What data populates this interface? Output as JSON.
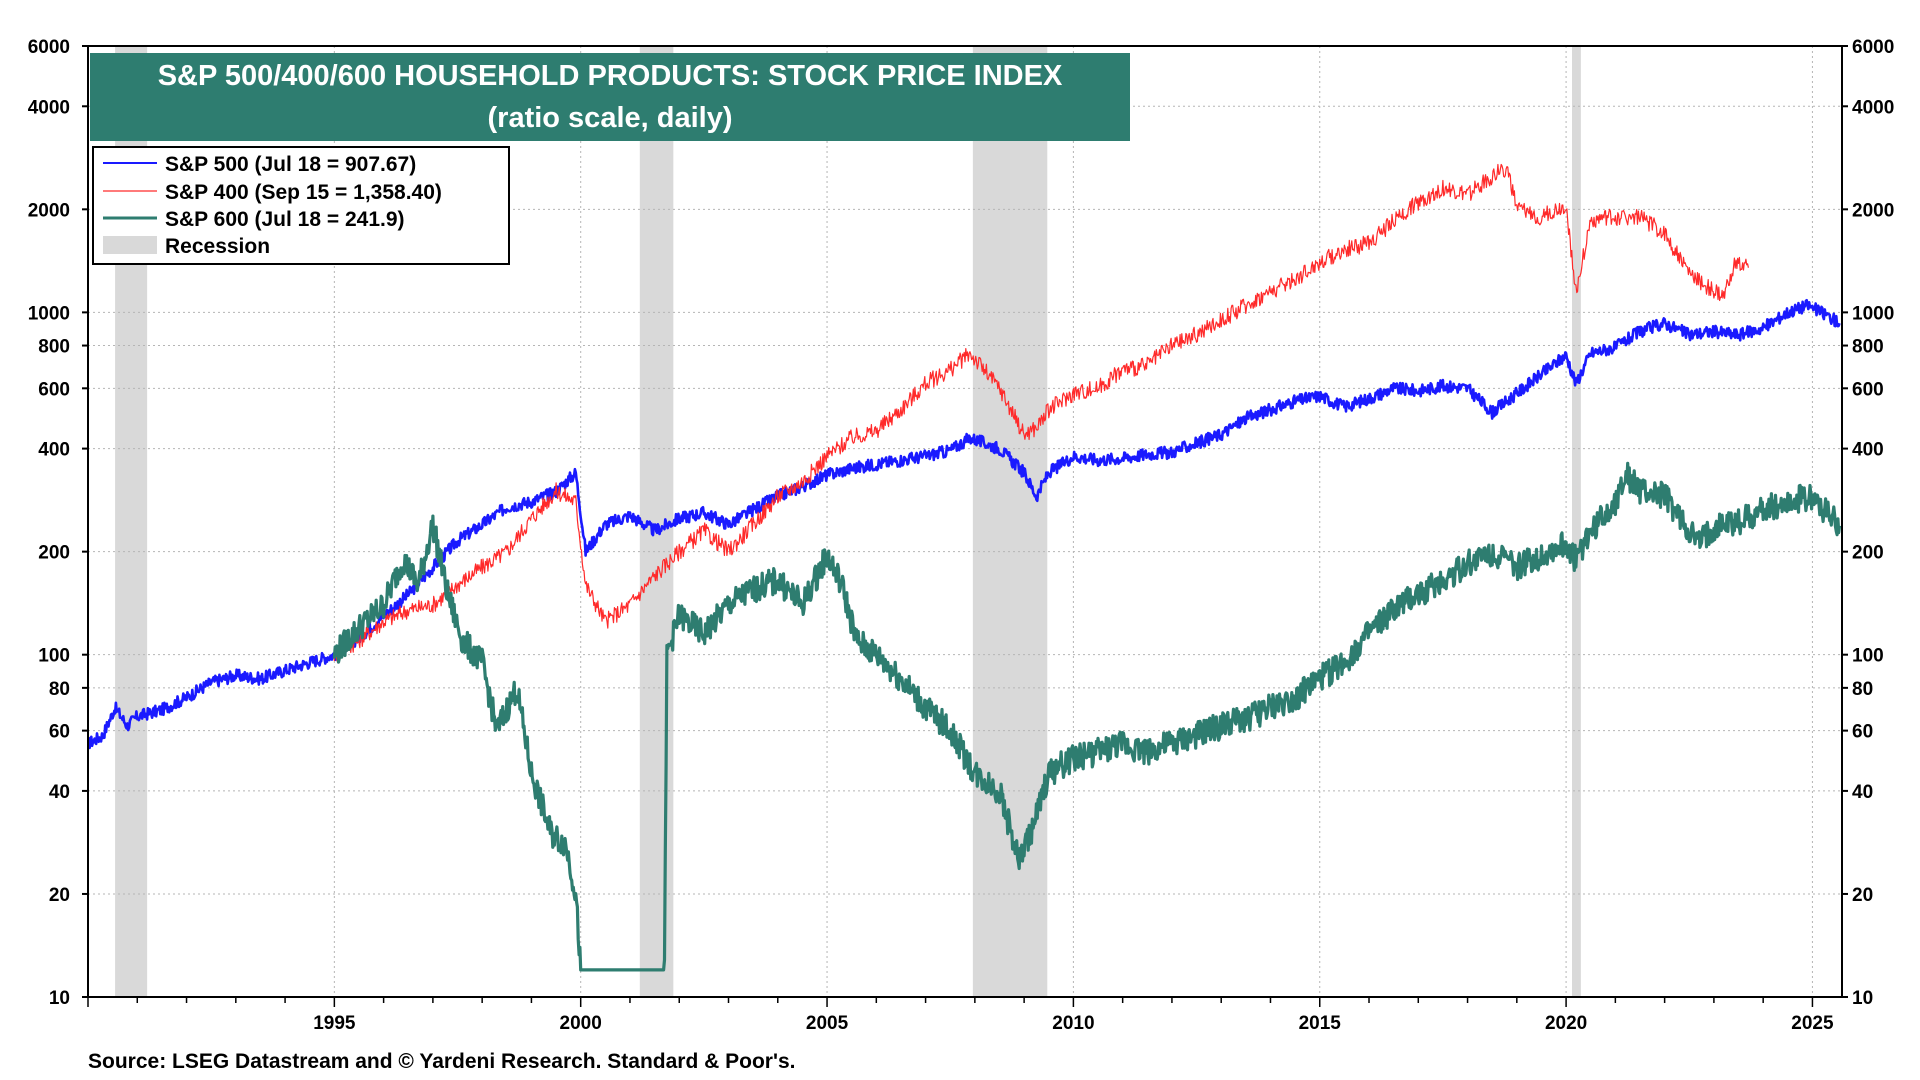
{
  "source": "Source: LSEG Datastream and © Yardeni Research. Standard & Poor's.",
  "chart_data": {
    "type": "line",
    "title": "S&P 500/400/600 HOUSEHOLD PRODUCTS: STOCK PRICE INDEX",
    "subtitle": "(ratio scale, daily)",
    "yscale": "log",
    "ylim": [
      10,
      6000
    ],
    "xlim": [
      1990.0,
      2025.6
    ],
    "y_ticks": [
      10,
      20,
      40,
      60,
      80,
      100,
      200,
      400,
      600,
      800,
      1000,
      2000,
      4000,
      6000
    ],
    "x_ticks": [
      1995,
      2000,
      2005,
      2010,
      2015,
      2020,
      2025
    ],
    "grid": true,
    "legend_position": "top-left",
    "colors": {
      "sp500": "#1a1aff",
      "sp400": "#ff2a2a",
      "sp600": "#2e7d70",
      "recession": "#d9d9d9",
      "title_bg": "#2e7d70"
    },
    "legend": [
      {
        "label": "S&P 500 (Jul 18 = 907.67)",
        "color": "#1a1aff"
      },
      {
        "label": "S&P 400 (Sep 15 = 1,358.40)",
        "color": "#ff2a2a"
      },
      {
        "label": "S&P 600 (Jul 18 = 241.9)",
        "color": "#2e7d70"
      },
      {
        "label": "Recession",
        "color": "#d9d9d9"
      }
    ],
    "recessions": [
      [
        1990.55,
        1991.2
      ],
      [
        2001.2,
        2001.88
      ],
      [
        2007.96,
        2009.47
      ],
      [
        2020.12,
        2020.3
      ]
    ],
    "series": [
      {
        "name": "S&P 500 (Jul 18 = 907.67)",
        "color": "#1a1aff",
        "points": [
          [
            1990.0,
            55
          ],
          [
            1990.3,
            58
          ],
          [
            1990.55,
            70
          ],
          [
            1990.8,
            62
          ],
          [
            1991.0,
            66
          ],
          [
            1991.5,
            69
          ],
          [
            1992.0,
            75
          ],
          [
            1992.5,
            83
          ],
          [
            1993.0,
            87
          ],
          [
            1993.5,
            85
          ],
          [
            1994.0,
            90
          ],
          [
            1994.5,
            95
          ],
          [
            1995.0,
            100
          ],
          [
            1995.5,
            112
          ],
          [
            1996.0,
            130
          ],
          [
            1996.5,
            150
          ],
          [
            1997.0,
            180
          ],
          [
            1997.5,
            215
          ],
          [
            1998.0,
            240
          ],
          [
            1998.5,
            270
          ],
          [
            1999.0,
            280
          ],
          [
            1999.5,
            300
          ],
          [
            1999.9,
            340
          ],
          [
            2000.1,
            200
          ],
          [
            2000.5,
            240
          ],
          [
            2001.0,
            255
          ],
          [
            2001.5,
            230
          ],
          [
            2002.0,
            250
          ],
          [
            2002.5,
            260
          ],
          [
            2003.0,
            240
          ],
          [
            2003.5,
            265
          ],
          [
            2004.0,
            290
          ],
          [
            2004.5,
            310
          ],
          [
            2005.0,
            335
          ],
          [
            2005.5,
            350
          ],
          [
            2006.0,
            360
          ],
          [
            2006.5,
            370
          ],
          [
            2007.0,
            380
          ],
          [
            2007.5,
            395
          ],
          [
            2007.9,
            430
          ],
          [
            2008.5,
            400
          ],
          [
            2009.0,
            340
          ],
          [
            2009.25,
            290
          ],
          [
            2009.5,
            340
          ],
          [
            2010.0,
            380
          ],
          [
            2010.5,
            370
          ],
          [
            2011.0,
            375
          ],
          [
            2011.5,
            385
          ],
          [
            2012.0,
            390
          ],
          [
            2012.5,
            415
          ],
          [
            2013.0,
            440
          ],
          [
            2013.5,
            490
          ],
          [
            2014.0,
            520
          ],
          [
            2014.5,
            550
          ],
          [
            2015.0,
            570
          ],
          [
            2015.5,
            530
          ],
          [
            2016.0,
            560
          ],
          [
            2016.5,
            600
          ],
          [
            2017.0,
            590
          ],
          [
            2017.5,
            610
          ],
          [
            2018.0,
            600
          ],
          [
            2018.5,
            510
          ],
          [
            2019.0,
            580
          ],
          [
            2019.5,
            660
          ],
          [
            2020.0,
            750
          ],
          [
            2020.2,
            620
          ],
          [
            2020.5,
            760
          ],
          [
            2021.0,
            790
          ],
          [
            2021.5,
            880
          ],
          [
            2022.0,
            930
          ],
          [
            2022.5,
            860
          ],
          [
            2023.0,
            880
          ],
          [
            2023.5,
            860
          ],
          [
            2024.0,
            900
          ],
          [
            2024.5,
            1000
          ],
          [
            2024.9,
            1050
          ],
          [
            2025.3,
            980
          ],
          [
            2025.55,
            930
          ]
        ]
      },
      {
        "name": "S&P 400 (Sep 15 = 1,358.40)",
        "color": "#ff2a2a",
        "points": [
          [
            1995.0,
            100
          ],
          [
            1995.5,
            110
          ],
          [
            1996.0,
            125
          ],
          [
            1996.5,
            135
          ],
          [
            1997.0,
            140
          ],
          [
            1997.5,
            160
          ],
          [
            1998.0,
            180
          ],
          [
            1998.5,
            200
          ],
          [
            1999.0,
            250
          ],
          [
            1999.5,
            300
          ],
          [
            1999.9,
            280
          ],
          [
            2000.1,
            160
          ],
          [
            2000.5,
            125
          ],
          [
            2001.0,
            140
          ],
          [
            2001.5,
            170
          ],
          [
            2002.0,
            200
          ],
          [
            2002.5,
            230
          ],
          [
            2003.0,
            200
          ],
          [
            2003.5,
            240
          ],
          [
            2004.0,
            290
          ],
          [
            2004.5,
            320
          ],
          [
            2005.0,
            380
          ],
          [
            2005.5,
            430
          ],
          [
            2006.0,
            450
          ],
          [
            2006.5,
            520
          ],
          [
            2007.0,
            620
          ],
          [
            2007.5,
            680
          ],
          [
            2007.9,
            760
          ],
          [
            2008.5,
            600
          ],
          [
            2009.0,
            440
          ],
          [
            2009.25,
            460
          ],
          [
            2009.5,
            520
          ],
          [
            2010.0,
            580
          ],
          [
            2010.5,
            600
          ],
          [
            2011.0,
            680
          ],
          [
            2011.5,
            700
          ],
          [
            2012.0,
            800
          ],
          [
            2012.5,
            860
          ],
          [
            2013.0,
            950
          ],
          [
            2013.5,
            1050
          ],
          [
            2014.0,
            1150
          ],
          [
            2014.5,
            1250
          ],
          [
            2015.0,
            1400
          ],
          [
            2015.5,
            1520
          ],
          [
            2016.0,
            1600
          ],
          [
            2016.5,
            1850
          ],
          [
            2017.0,
            2100
          ],
          [
            2017.5,
            2300
          ],
          [
            2018.0,
            2200
          ],
          [
            2018.5,
            2500
          ],
          [
            2018.8,
            2650
          ],
          [
            2019.0,
            2000
          ],
          [
            2019.5,
            1900
          ],
          [
            2020.0,
            2050
          ],
          [
            2020.2,
            1150
          ],
          [
            2020.5,
            1850
          ],
          [
            2021.0,
            1900
          ],
          [
            2021.5,
            1900
          ],
          [
            2022.0,
            1700
          ],
          [
            2022.5,
            1300
          ],
          [
            2023.0,
            1150
          ],
          [
            2023.2,
            1100
          ],
          [
            2023.4,
            1380
          ],
          [
            2023.7,
            1350
          ]
        ]
      },
      {
        "name": "S&P 600 (Jul 18 = 241.9)",
        "color": "#2e7d70",
        "points": [
          [
            1995.0,
            100
          ],
          [
            1995.5,
            120
          ],
          [
            1996.0,
            140
          ],
          [
            1996.4,
            190
          ],
          [
            1996.7,
            160
          ],
          [
            1997.0,
            240
          ],
          [
            1997.3,
            150
          ],
          [
            1997.6,
            110
          ],
          [
            1998.0,
            95
          ],
          [
            1998.3,
            60
          ],
          [
            1998.7,
            80
          ],
          [
            1999.0,
            45
          ],
          [
            1999.4,
            30
          ],
          [
            1999.7,
            28
          ],
          [
            1999.9,
            20
          ],
          [
            2000.0,
            12
          ],
          [
            2001.7,
            12
          ],
          [
            2001.75,
            100
          ],
          [
            2002.0,
            130
          ],
          [
            2002.5,
            115
          ],
          [
            2003.0,
            140
          ],
          [
            2003.5,
            155
          ],
          [
            2004.0,
            165
          ],
          [
            2004.5,
            140
          ],
          [
            2005.0,
            195
          ],
          [
            2005.3,
            160
          ],
          [
            2005.6,
            110
          ],
          [
            2006.0,
            100
          ],
          [
            2006.5,
            85
          ],
          [
            2007.0,
            70
          ],
          [
            2007.5,
            60
          ],
          [
            2008.0,
            45
          ],
          [
            2008.5,
            40
          ],
          [
            2008.9,
            25
          ],
          [
            2009.2,
            32
          ],
          [
            2009.5,
            45
          ],
          [
            2010.0,
            50
          ],
          [
            2010.5,
            52
          ],
          [
            2011.0,
            55
          ],
          [
            2011.5,
            52
          ],
          [
            2012.0,
            55
          ],
          [
            2012.5,
            58
          ],
          [
            2013.0,
            62
          ],
          [
            2013.5,
            65
          ],
          [
            2014.0,
            70
          ],
          [
            2014.5,
            75
          ],
          [
            2015.0,
            85
          ],
          [
            2015.5,
            95
          ],
          [
            2016.0,
            115
          ],
          [
            2016.5,
            135
          ],
          [
            2017.0,
            150
          ],
          [
            2017.5,
            165
          ],
          [
            2018.0,
            185
          ],
          [
            2018.5,
            200
          ],
          [
            2019.0,
            180
          ],
          [
            2019.5,
            195
          ],
          [
            2020.0,
            210
          ],
          [
            2020.2,
            190
          ],
          [
            2020.5,
            230
          ],
          [
            2021.0,
            280
          ],
          [
            2021.2,
            340
          ],
          [
            2021.5,
            300
          ],
          [
            2022.0,
            290
          ],
          [
            2022.3,
            250
          ],
          [
            2022.7,
            210
          ],
          [
            2023.0,
            235
          ],
          [
            2023.5,
            245
          ],
          [
            2024.0,
            265
          ],
          [
            2024.5,
            280
          ],
          [
            2025.0,
            290
          ],
          [
            2025.3,
            260
          ],
          [
            2025.55,
            238
          ]
        ]
      }
    ]
  }
}
